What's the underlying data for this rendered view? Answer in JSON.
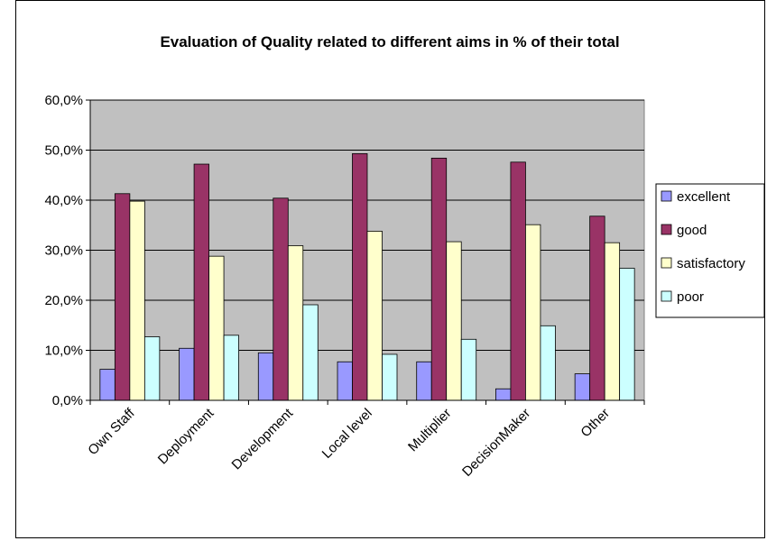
{
  "chart_data": {
    "type": "bar",
    "title": "Evaluation of Quality related to different aims in % of their total",
    "xlabel": "",
    "ylabel": "",
    "categories": [
      "Own Staff",
      "Deployment",
      "Development",
      "Local level",
      "Multiplier",
      "DecisionMaker",
      "Other"
    ],
    "ylim": [
      0,
      60
    ],
    "yticks": [
      "0,0%",
      "10,0%",
      "20,0%",
      "30,0%",
      "40,0%",
      "50,0%",
      "60,0%"
    ],
    "grid": true,
    "legend_position": "right",
    "plot_background": "#c0c0c0",
    "series": [
      {
        "name": "excellent",
        "color": "#9999ff",
        "values": [
          6.2,
          10.4,
          9.5,
          7.7,
          7.7,
          2.3,
          5.3
        ]
      },
      {
        "name": "good",
        "color": "#993366",
        "values": [
          41.3,
          47.2,
          40.4,
          49.3,
          48.4,
          47.6,
          36.8
        ]
      },
      {
        "name": "satisfactory",
        "color": "#ffffcc",
        "values": [
          39.8,
          28.8,
          30.9,
          33.8,
          31.7,
          35.1,
          31.5
        ]
      },
      {
        "name": "poor",
        "color": "#ccffff",
        "values": [
          12.7,
          13.0,
          19.1,
          9.2,
          12.2,
          14.9,
          26.4
        ]
      }
    ]
  }
}
